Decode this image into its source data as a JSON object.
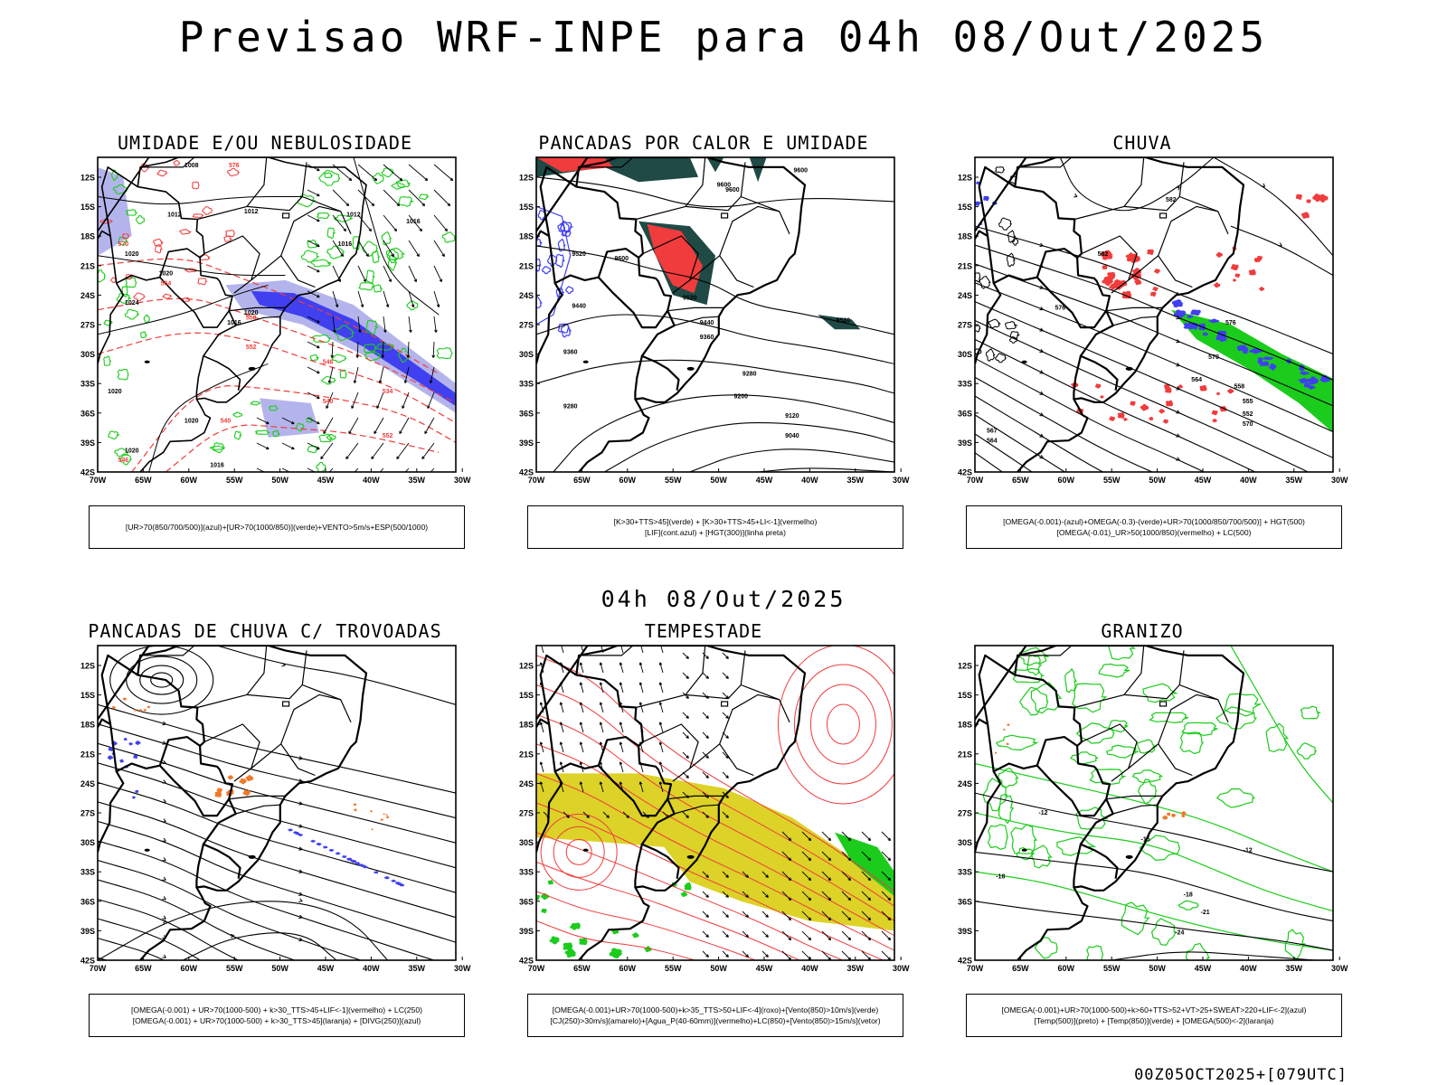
{
  "title": "Previsao WRF-INPE  para 04h 08/Out/2025",
  "mid_title": "04h 08/Out/2025",
  "footer": "00Z05OCT2025+[079UTC]",
  "axes": {
    "lat_labels": [
      "12S",
      "15S",
      "18S",
      "21S",
      "24S",
      "27S",
      "30S",
      "33S",
      "36S",
      "39S",
      "42S"
    ],
    "lon_labels": [
      "70W",
      "65W",
      "60W",
      "55W",
      "50W",
      "45W",
      "40W",
      "35W",
      "30W"
    ]
  },
  "colors": {
    "blue": "#4040f0",
    "blue_light": "#b4b4ec",
    "green": "#1ccc1c",
    "red": "#f03c3c",
    "yellow": "#dcd228",
    "orange": "#f07828",
    "dark_teal": "#1f4a46",
    "purple": "#7040d0"
  },
  "chart_data": [
    {
      "id": "umidade",
      "type": "contour-map",
      "title": "UMIDADE E/OU NEBULOSIDADE",
      "legend": [
        "[UR>70(850/700/500)](azul)+[UR>70(1000/850)](verde)+VENTO>5m/s+ESP(500/1000)"
      ],
      "contour_labels": [
        "1008",
        "1012",
        "1012",
        "1012",
        "1016",
        "1016",
        "1020",
        "1020",
        "1020",
        "1020",
        "1016",
        "1016",
        "1020",
        "1020",
        "1024",
        "576",
        "570",
        "564",
        "558",
        "552",
        "546",
        "540",
        "534",
        "552",
        "546",
        "540"
      ]
    },
    {
      "id": "pancadas-calor",
      "type": "contour-map",
      "title": "PANCADAS POR CALOR E UMIDADE",
      "legend": [
        "[K>30+TTS>45](verde) + [K>30+TTS>45+LI<-1](vermelho)",
        "[LIF](cont.azul) + [HGT(300)](linha preta)"
      ],
      "contour_labels": [
        "9600",
        "9600",
        "9600",
        "9520",
        "9600",
        "9520",
        "9440",
        "9440",
        "9360",
        "9360",
        "9280",
        "9280",
        "9200",
        "9120",
        "9040",
        "9520"
      ]
    },
    {
      "id": "chuva",
      "type": "contour-map",
      "title": "CHUVA",
      "legend": [
        "[OMEGA(-0.001)-(azul)+OMEGA(-0.3)-(verde)+UR>70(1000/850/700/500)] + HGT(500)",
        "[OMEGA(-0.01)_UR>50(1000/850)(vermelho) + LC(500)"
      ],
      "contour_labels": [
        "582",
        "582",
        "576",
        "576",
        "570",
        "564",
        "558",
        "555",
        "552",
        "570",
        "567",
        "564"
      ]
    },
    {
      "id": "pancadas-trovoadas",
      "type": "streamline-map",
      "title": "PANCADAS DE CHUVA C/ TROVOADAS",
      "legend": [
        "[OMEGA(-0.001) + UR>70(1000-500) + k>30_TTS>45+LIF<-1](vermelho) + LC(250)",
        "[OMEGA(-0.001) + UR>70(1000-500) + k>30_TTS>45](laranja) + [DIVG(250)](azul)"
      ]
    },
    {
      "id": "tempestade",
      "type": "streamline-map",
      "title": "TEMPESTADE",
      "legend": [
        "[OMEGA(-0.001)+UR>70(1000-500)+k>35_TTS>50+LIF<-4](roxo)+[Vento(850)>10m/s](verde)",
        "[CJ(250)>30m/s](amarelo)+[Agua_P(40-60mm)](vermelho)+LC(850)+[Vento(850)>15m/s](vetor)"
      ]
    },
    {
      "id": "granizo",
      "type": "contour-map",
      "title": "GRANIZO",
      "legend": [
        "[OMEGA(-0.001)+UR>70(1000-500)+k>60+TTS>52+VT>25+SWEAT>220+LIF<-2](azul)",
        "[Temp(500)](preto) + [Temp(850)](verde) + [OMEGA(500)<-2](laranja)"
      ],
      "contour_labels": [
        "-12",
        "-15",
        "-18",
        "-18",
        "-21",
        "-24",
        "-12"
      ]
    }
  ]
}
